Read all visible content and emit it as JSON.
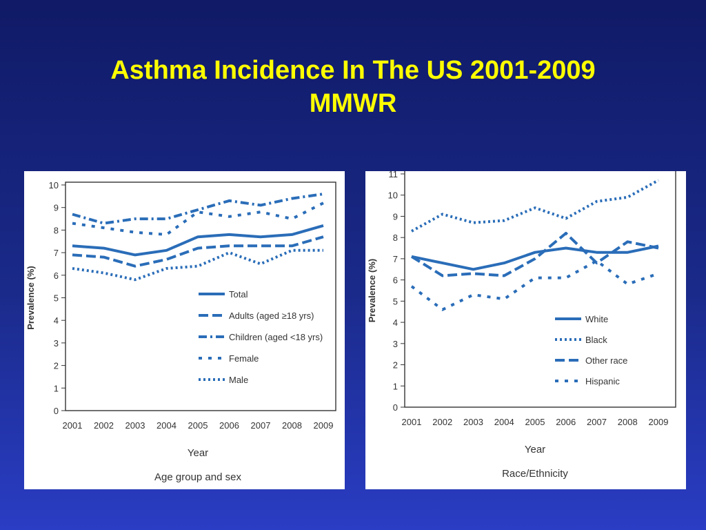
{
  "title": {
    "line1": "Asthma Incidence In The US 2001-2009",
    "line2": "MMWR"
  },
  "chart_data": [
    {
      "type": "line",
      "x": [
        "2001",
        "2002",
        "2003",
        "2004",
        "2005",
        "2006",
        "2007",
        "2008",
        "2009"
      ],
      "xlabel": "Year",
      "caption": "Age group and sex",
      "ylabel": "Prevalence (%)",
      "ylim": [
        0,
        10
      ],
      "yticks": [
        0,
        1,
        2,
        3,
        4,
        5,
        6,
        7,
        8,
        9,
        10
      ],
      "grid": false,
      "legend_position": "right-middle",
      "series": [
        {
          "name": "Total",
          "style": "solid",
          "color": "#2a6db8",
          "values": [
            7.3,
            7.2,
            6.9,
            7.1,
            7.7,
            7.8,
            7.7,
            7.8,
            8.2
          ]
        },
        {
          "name": "Adults (aged ≥18 yrs)",
          "style": "dash",
          "color": "#2a6db8",
          "values": [
            6.9,
            6.8,
            6.4,
            6.7,
            7.2,
            7.3,
            7.3,
            7.3,
            7.7
          ]
        },
        {
          "name": "Children (aged <18 yrs)",
          "style": "dashdot",
          "color": "#2a6db8",
          "values": [
            8.7,
            8.3,
            8.5,
            8.5,
            8.9,
            9.3,
            9.1,
            9.4,
            9.6
          ]
        },
        {
          "name": "Female",
          "style": "sparsedash",
          "color": "#2a6db8",
          "values": [
            8.3,
            8.1,
            7.9,
            7.8,
            8.8,
            8.6,
            8.8,
            8.5,
            9.2
          ]
        },
        {
          "name": "Male",
          "style": "dot",
          "color": "#2a6db8",
          "values": [
            6.3,
            6.1,
            5.8,
            6.3,
            6.4,
            7.0,
            6.5,
            7.1,
            7.1
          ]
        }
      ]
    },
    {
      "type": "line",
      "x": [
        "2001",
        "2002",
        "2003",
        "2004",
        "2005",
        "2006",
        "2007",
        "2008",
        "2009"
      ],
      "xlabel": "Year",
      "caption": "Race/Ethnicity",
      "ylabel": "Prevalence (%)",
      "ylim": [
        0,
        11
      ],
      "yticks": [
        0,
        1,
        2,
        3,
        4,
        5,
        6,
        7,
        8,
        9,
        10,
        11
      ],
      "grid": false,
      "legend_position": "right-bottom",
      "series": [
        {
          "name": "White",
          "style": "solid",
          "color": "#2a6db8",
          "values": [
            7.1,
            6.8,
            6.5,
            6.8,
            7.3,
            7.5,
            7.3,
            7.3,
            7.6
          ]
        },
        {
          "name": "Black",
          "style": "dot",
          "color": "#2a6db8",
          "values": [
            8.3,
            9.1,
            8.7,
            8.8,
            9.4,
            8.9,
            9.7,
            9.9,
            10.7
          ]
        },
        {
          "name": "Other race",
          "style": "dash",
          "color": "#2a6db8",
          "values": [
            7.1,
            6.2,
            6.3,
            6.2,
            7.0,
            8.2,
            6.8,
            7.8,
            7.5
          ]
        },
        {
          "name": "Hispanic",
          "style": "sparsedash",
          "color": "#2a6db8",
          "values": [
            5.7,
            4.6,
            5.3,
            5.1,
            6.1,
            6.1,
            6.9,
            5.8,
            6.3
          ]
        }
      ]
    }
  ]
}
